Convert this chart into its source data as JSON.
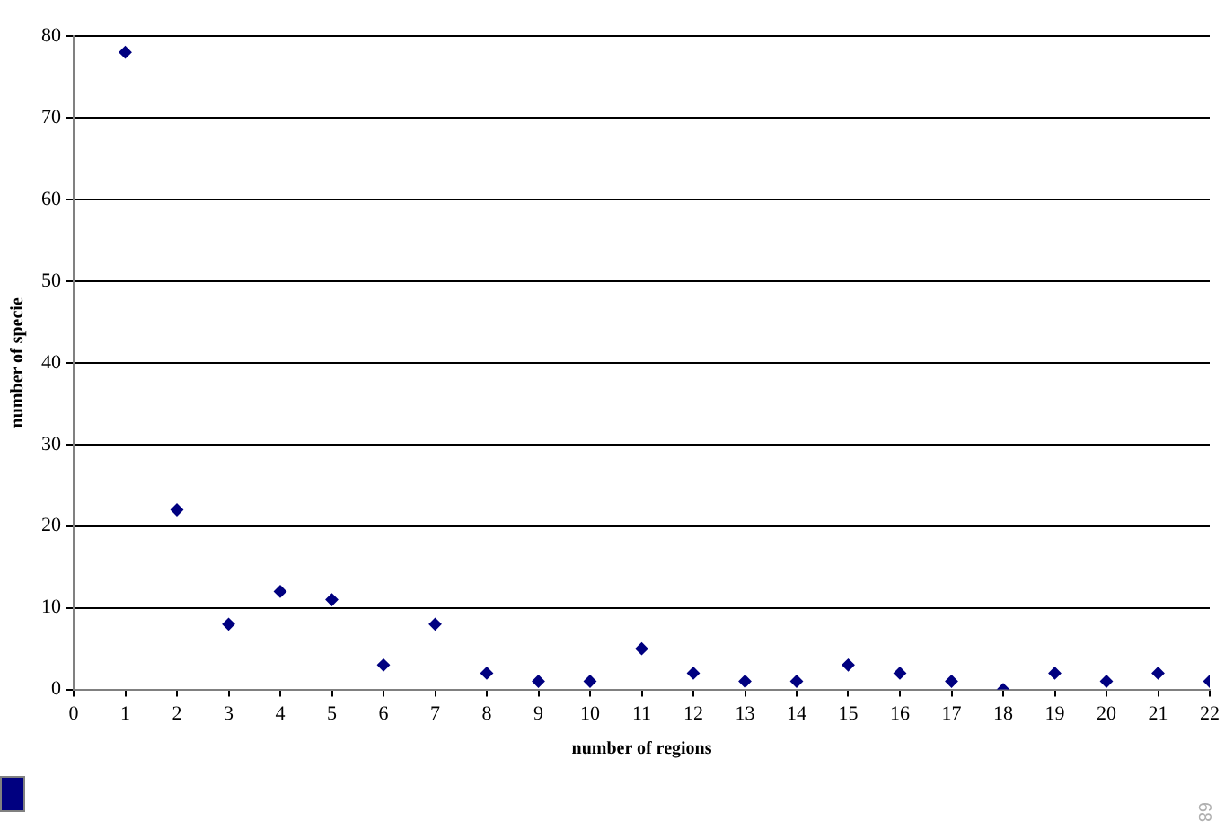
{
  "chart_data": {
    "type": "scatter",
    "xlabel": "number of regions",
    "ylabel": "number of specie",
    "x": [
      1,
      2,
      3,
      4,
      5,
      6,
      7,
      8,
      9,
      10,
      11,
      12,
      13,
      14,
      15,
      16,
      17,
      18,
      19,
      20,
      21,
      22
    ],
    "values": [
      78,
      22,
      8,
      12,
      11,
      3,
      8,
      2,
      1,
      1,
      5,
      2,
      1,
      1,
      3,
      2,
      1,
      0,
      2,
      1,
      2,
      1
    ],
    "color": "#000080",
    "marker": "diamond",
    "grid": "y",
    "xlim": [
      0,
      22
    ],
    "xticks": [
      0,
      1,
      2,
      3,
      4,
      5,
      6,
      7,
      8,
      9,
      10,
      11,
      12,
      13,
      14,
      15,
      16,
      17,
      18,
      19,
      20,
      21,
      22
    ],
    "ylim": [
      0,
      80
    ],
    "yticks": [
      0,
      10,
      20,
      30,
      40,
      50,
      60,
      70,
      80
    ],
    "annotations": [
      "68"
    ]
  }
}
